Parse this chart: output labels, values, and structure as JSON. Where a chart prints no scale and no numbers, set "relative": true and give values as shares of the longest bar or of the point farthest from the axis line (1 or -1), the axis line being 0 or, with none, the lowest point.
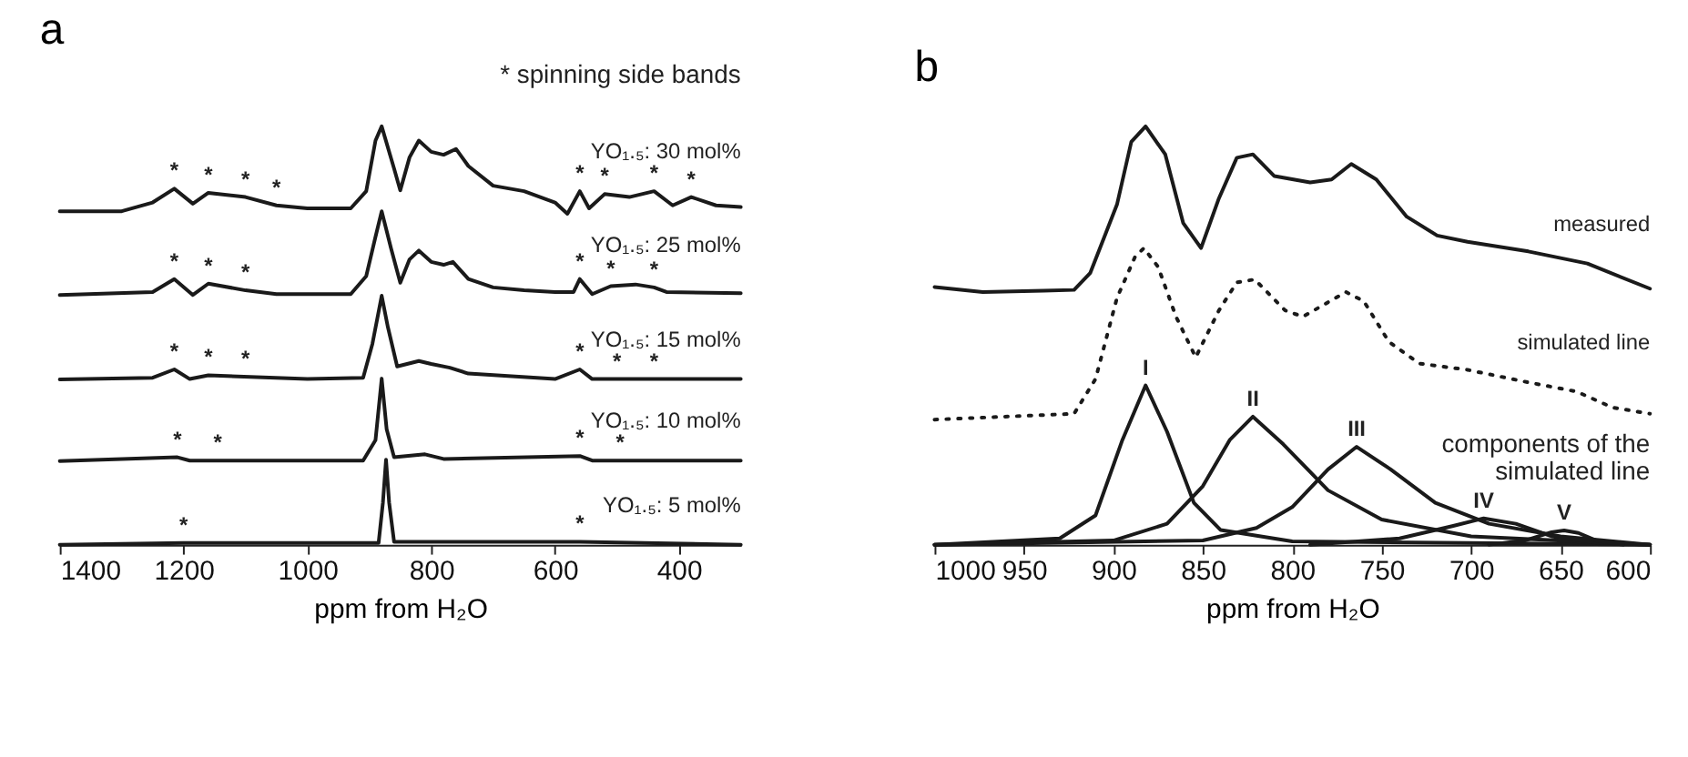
{
  "chart_data": [
    {
      "type": "line",
      "title": "a",
      "xlabel": "ppm from H₂O",
      "relative": true,
      "tick_labels": "x",
      "grid": false,
      "xlim": [
        1400,
        300
      ],
      "xticks": [
        1400,
        1200,
        1000,
        800,
        600,
        400
      ],
      "series": [
        {
          "name": "YO₁.₅: 30 mol%",
          "color": "#1a1a1a",
          "line_style": "solid",
          "x": [
            1400,
            1300,
            1250,
            1215,
            1185,
            1160,
            1100,
            1050,
            1000,
            930,
            905,
            890,
            880,
            860,
            850,
            835,
            820,
            800,
            780,
            760,
            740,
            700,
            650,
            600,
            580,
            560,
            545,
            520,
            480,
            440,
            410,
            380,
            340,
            300
          ],
          "values": [
            0.797,
            0.797,
            0.818,
            0.851,
            0.815,
            0.841,
            0.831,
            0.811,
            0.804,
            0.804,
            0.845,
            0.966,
            1.0,
            0.899,
            0.847,
            0.926,
            0.966,
            0.939,
            0.932,
            0.946,
            0.905,
            0.858,
            0.845,
            0.818,
            0.791,
            0.845,
            0.804,
            0.838,
            0.831,
            0.845,
            0.811,
            0.831,
            0.811,
            0.807
          ]
        },
        {
          "name": "YO₁.₅: 25 mol%",
          "color": "#1a1a1a",
          "line_style": "solid",
          "x": [
            1400,
            1250,
            1215,
            1185,
            1160,
            1100,
            1050,
            930,
            905,
            890,
            880,
            865,
            850,
            835,
            820,
            800,
            780,
            765,
            740,
            700,
            650,
            600,
            570,
            560,
            540,
            510,
            470,
            440,
            420,
            300
          ],
          "values": [
            0.597,
            0.604,
            0.635,
            0.597,
            0.624,
            0.608,
            0.599,
            0.599,
            0.642,
            0.736,
            0.797,
            0.709,
            0.626,
            0.682,
            0.703,
            0.676,
            0.669,
            0.676,
            0.635,
            0.615,
            0.608,
            0.604,
            0.604,
            0.635,
            0.599,
            0.618,
            0.622,
            0.615,
            0.604,
            0.601
          ]
        },
        {
          "name": "YO₁.₅: 15 mol%",
          "color": "#1a1a1a",
          "line_style": "solid",
          "x": [
            1400,
            1250,
            1215,
            1190,
            1160,
            1000,
            910,
            895,
            880,
            870,
            855,
            820,
            800,
            770,
            740,
            600,
            560,
            540,
            300
          ],
          "values": [
            0.395,
            0.399,
            0.419,
            0.396,
            0.405,
            0.396,
            0.399,
            0.48,
            0.595,
            0.52,
            0.426,
            0.439,
            0.432,
            0.423,
            0.409,
            0.396,
            0.419,
            0.396,
            0.396
          ]
        },
        {
          "name": "YO₁.₅: 10 mol%",
          "color": "#1a1a1a",
          "line_style": "solid",
          "x": [
            1400,
            1210,
            1190,
            910,
            890,
            880,
            872,
            860,
            810,
            780,
            560,
            540,
            300
          ],
          "values": [
            0.2,
            0.209,
            0.201,
            0.201,
            0.25,
            0.397,
            0.276,
            0.209,
            0.216,
            0.205,
            0.212,
            0.201,
            0.201
          ]
        },
        {
          "name": "YO₁.₅: 5 mol%",
          "color": "#1a1a1a",
          "line_style": "solid",
          "x": [
            1400,
            1200,
            885,
            878,
            873,
            868,
            860,
            560,
            300
          ],
          "values": [
            0.0,
            0.004,
            0.004,
            0.101,
            0.203,
            0.101,
            0.007,
            0.007,
            0.0
          ]
        }
      ],
      "annotations": [
        "* spinning side bands",
        {
          "text": "*",
          "x": 1215,
          "y": 0.851
        },
        {
          "text": "*",
          "x": 1160,
          "y": 0.841
        },
        {
          "text": "*",
          "x": 1100,
          "y": 0.831
        },
        {
          "text": "*",
          "x": 1050,
          "y": 0.811
        },
        {
          "text": "*",
          "x": 560,
          "y": 0.845
        },
        {
          "text": "*",
          "x": 520,
          "y": 0.838
        },
        {
          "text": "*",
          "x": 440,
          "y": 0.845
        },
        {
          "text": "*",
          "x": 380,
          "y": 0.831
        },
        {
          "text": "*",
          "x": 1215,
          "y": 0.635
        },
        {
          "text": "*",
          "x": 1160,
          "y": 0.624
        },
        {
          "text": "*",
          "x": 1100,
          "y": 0.608
        },
        {
          "text": "*",
          "x": 560,
          "y": 0.635
        },
        {
          "text": "*",
          "x": 510,
          "y": 0.618
        },
        {
          "text": "*",
          "x": 440,
          "y": 0.615
        },
        {
          "text": "*",
          "x": 1215,
          "y": 0.419
        },
        {
          "text": "*",
          "x": 1160,
          "y": 0.405
        },
        {
          "text": "*",
          "x": 1100,
          "y": 0.402
        },
        {
          "text": "*",
          "x": 560,
          "y": 0.419
        },
        {
          "text": "*",
          "x": 500,
          "y": 0.396
        },
        {
          "text": "*",
          "x": 440,
          "y": 0.396
        },
        {
          "text": "*",
          "x": 1210,
          "y": 0.209
        },
        {
          "text": "*",
          "x": 1145,
          "y": 0.201
        },
        {
          "text": "*",
          "x": 560,
          "y": 0.212
        },
        {
          "text": "*",
          "x": 495,
          "y": 0.201
        },
        {
          "text": "*",
          "x": 1200,
          "y": 0.004
        },
        {
          "text": "*",
          "x": 560,
          "y": 0.007
        }
      ]
    },
    {
      "type": "line",
      "title": "b",
      "xlabel": "ppm from H₂O",
      "relative": true,
      "tick_labels": "x",
      "grid": false,
      "xlim": [
        1000,
        600
      ],
      "xticks": [
        1000,
        950,
        900,
        850,
        800,
        750,
        700,
        650,
        600
      ],
      "series": [
        {
          "name": "measured",
          "color": "#1a1a1a",
          "line_style": "solid",
          "x": [
            1000,
            973,
            939,
            922,
            913,
            898,
            890,
            882,
            871,
            861,
            851,
            841,
            831,
            822,
            810,
            790,
            778,
            767,
            753,
            736,
            719,
            702,
            668,
            635,
            600
          ],
          "values": [
            0.616,
            0.604,
            0.607,
            0.609,
            0.649,
            0.813,
            0.963,
            1.0,
            0.933,
            0.769,
            0.709,
            0.828,
            0.925,
            0.933,
            0.881,
            0.866,
            0.873,
            0.91,
            0.873,
            0.784,
            0.739,
            0.724,
            0.701,
            0.672,
            0.612
          ]
        },
        {
          "name": "simulated line",
          "color": "#1a1a1a",
          "line_style": "dotted",
          "x": [
            1000,
            922,
            910,
            898,
            888,
            883,
            875,
            865,
            854,
            841,
            831,
            821,
            804,
            794,
            770,
            760,
            746,
            729,
            702,
            668,
            641,
            621,
            600
          ],
          "values": [
            0.299,
            0.313,
            0.396,
            0.59,
            0.687,
            0.709,
            0.664,
            0.545,
            0.448,
            0.56,
            0.627,
            0.634,
            0.56,
            0.545,
            0.604,
            0.582,
            0.485,
            0.433,
            0.418,
            0.388,
            0.366,
            0.328,
            0.313
          ]
        },
        {
          "color": "#1a1a1a",
          "line_style": "solid",
          "x": [
            1000,
            930,
            910,
            895,
            882,
            870,
            855,
            840,
            800,
            600
          ],
          "values": [
            0.0,
            0.015,
            0.07,
            0.25,
            0.381,
            0.27,
            0.1,
            0.035,
            0.008,
            0.0
          ]
        },
        {
          "color": "#1a1a1a",
          "line_style": "solid",
          "x": [
            1000,
            900,
            870,
            850,
            835,
            822,
            805,
            780,
            750,
            700,
            600
          ],
          "values": [
            0.0,
            0.01,
            0.05,
            0.14,
            0.25,
            0.306,
            0.24,
            0.13,
            0.06,
            0.02,
            0.0
          ]
        },
        {
          "color": "#1a1a1a",
          "line_style": "solid",
          "x": [
            1000,
            850,
            820,
            800,
            780,
            764,
            745,
            720,
            690,
            650,
            600
          ],
          "values": [
            0.0,
            0.01,
            0.04,
            0.09,
            0.18,
            0.234,
            0.18,
            0.1,
            0.05,
            0.02,
            0.0
          ]
        },
        {
          "color": "#1a1a1a",
          "line_style": "solid",
          "x": [
            790,
            740,
            710,
            693,
            675,
            655,
            630,
            600
          ],
          "values": [
            0.0,
            0.015,
            0.045,
            0.063,
            0.05,
            0.02,
            0.005,
            0.0
          ]
        },
        {
          "color": "#1a1a1a",
          "line_style": "solid",
          "x": [
            690,
            670,
            655,
            648,
            640,
            630,
            615
          ],
          "values": [
            0.0,
            0.01,
            0.03,
            0.034,
            0.028,
            0.01,
            0.0
          ]
        }
      ],
      "annotations": [
        "components of the",
        "simulated line",
        {
          "text": "I",
          "x": 882,
          "y": 0.381
        },
        {
          "text": "II",
          "x": 822,
          "y": 0.306
        },
        {
          "text": "III",
          "x": 764,
          "y": 0.234
        },
        {
          "text": "IV",
          "x": 693,
          "y": 0.063
        },
        {
          "text": "V",
          "x": 648,
          "y": 0.034
        }
      ]
    }
  ]
}
